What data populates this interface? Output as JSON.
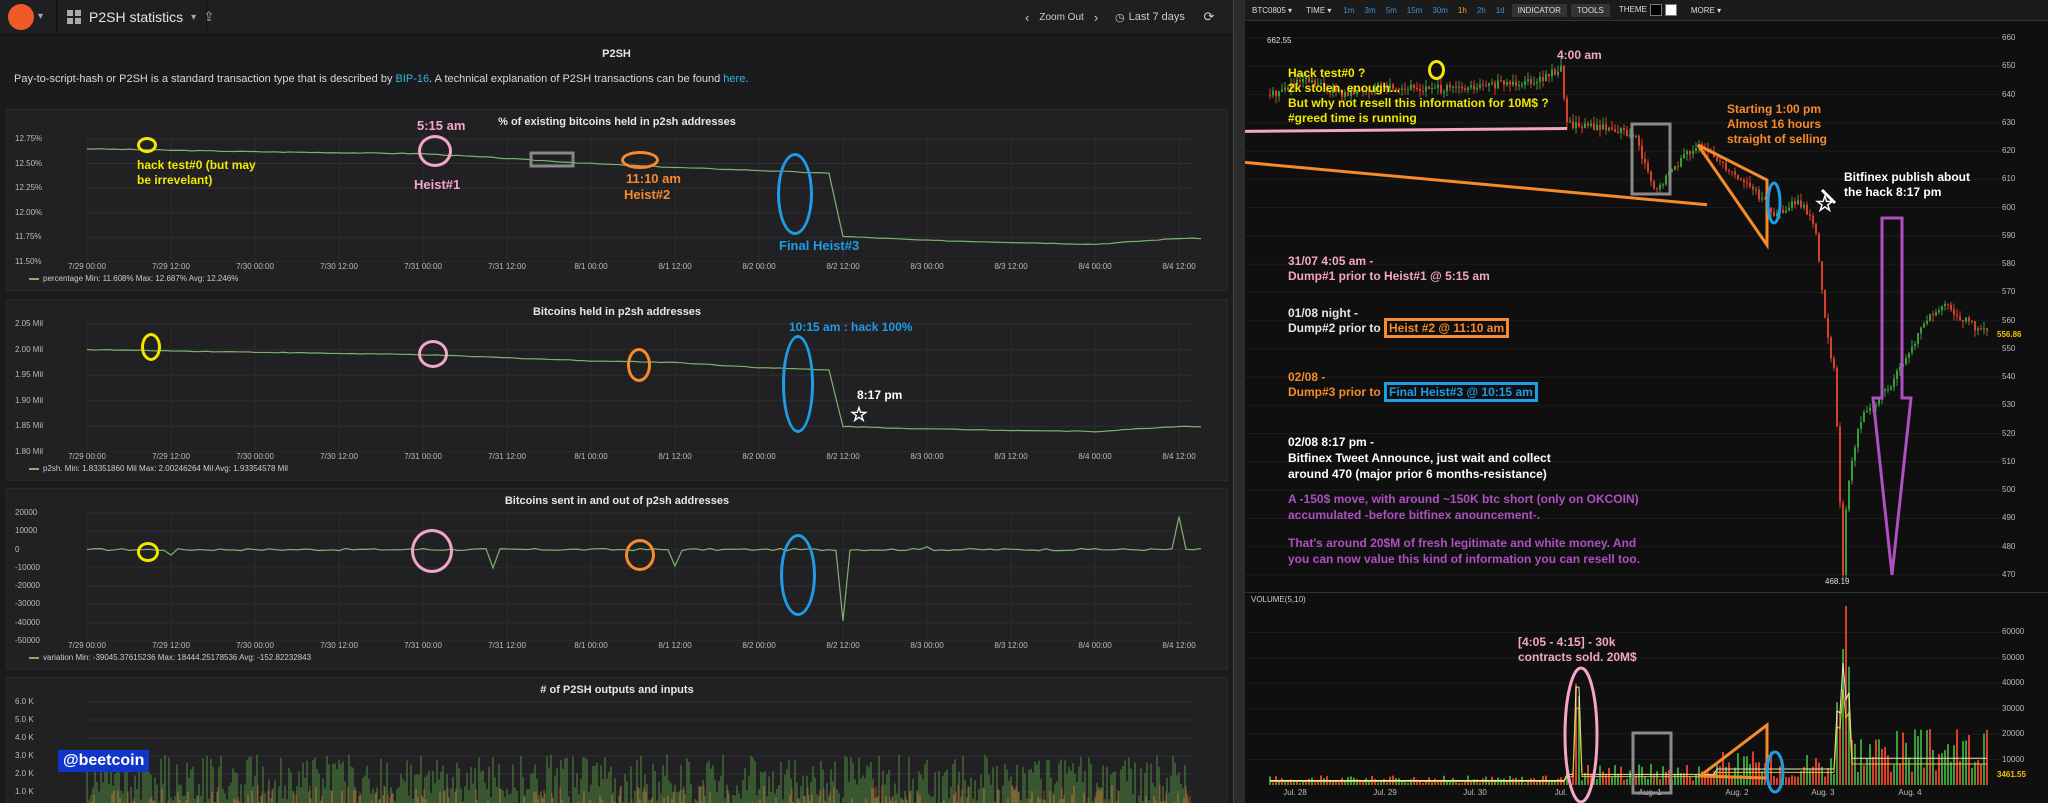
{
  "topbar": {
    "dashboard_title": "P2SH statistics",
    "dashboard_caret": "▾",
    "zoom_out": "Zoom Out",
    "time_range": "Last 7 days"
  },
  "text_panel": {
    "title": "P2SH",
    "desc_part1": "Pay-to-script-hash or P2SH is a standard transaction type that is described by ",
    "link_bip": "BIP-16",
    "desc_part2": ". A technical explanation of P2SH transactions can be found ",
    "link_here": "here",
    "desc_part3": "."
  },
  "x_ticks": [
    "7/29 00:00",
    "7/29 12:00",
    "7/30 00:00",
    "7/30 12:00",
    "7/31 00:00",
    "7/31 12:00",
    "8/1 00:00",
    "8/1 12:00",
    "8/2 00:00",
    "8/2 12:00",
    "8/3 00:00",
    "8/3 12:00",
    "8/4 00:00",
    "8/4 12:00"
  ],
  "panels": [
    {
      "title": "% of existing bitcoins held in p2sh addresses",
      "y_ticks": [
        "12.75%",
        "12.50%",
        "12.25%",
        "12.00%",
        "11.75%",
        "11.50%"
      ],
      "legend": "percentage  Min: 11.608%  Max: 12.687%  Avg: 12.246%"
    },
    {
      "title": "Bitcoins held in p2sh addresses",
      "y_ticks": [
        "2.05 Mil",
        "2.00 Mil",
        "1.95 Mil",
        "1.90 Mil",
        "1.85 Mil",
        "1.80 Mil"
      ],
      "legend": "p2sh.  Min: 1.83351860 Mil  Max: 2.00246264 Mil  Avg: 1.93354578 Mil"
    },
    {
      "title": "Bitcoins sent in and out of p2sh addresses",
      "y_ticks": [
        "20000",
        "10000",
        "0",
        "-10000",
        "-20000",
        "-30000",
        "-40000",
        "-50000"
      ],
      "legend": "variation  Min: -39045.37615236  Max: 18444.25178536  Avg: -152.82232843"
    },
    {
      "title": "# of P2SH outputs and inputs",
      "y_ticks": [
        "6.0 K",
        "5.0 K",
        "4.0 K",
        "3.0 K",
        "2.0 K",
        "1.0 K"
      ]
    }
  ],
  "chart_data": [
    {
      "type": "line",
      "title": "% of existing bitcoins held in p2sh addresses",
      "ylabel": "",
      "ylim": [
        11.5,
        12.8
      ],
      "series": [
        {
          "name": "percentage",
          "x": [
            "7/29 00:00",
            "7/30 00:00",
            "7/31 00:00",
            "7/31 10:00",
            "8/1 00:00",
            "8/1 12:00",
            "8/2 00:00",
            "8/2 10:00",
            "8/2 12:00",
            "8/3 00:00",
            "8/4 00:00",
            "8/4 12:00",
            "8/4 18:00"
          ],
          "values": [
            12.65,
            12.62,
            12.6,
            12.56,
            12.5,
            12.46,
            12.43,
            12.4,
            11.76,
            11.72,
            11.68,
            11.74,
            11.74
          ]
        }
      ]
    },
    {
      "type": "line",
      "title": "Bitcoins held in p2sh addresses",
      "ylabel": "",
      "ylim": [
        1.8,
        2.05
      ],
      "series": [
        {
          "name": "p2sh.",
          "x": [
            "7/29 00:00",
            "7/30 00:00",
            "7/31 00:00",
            "7/31 10:00",
            "8/1 00:00",
            "8/1 12:00",
            "8/2 00:00",
            "8/2 10:00",
            "8/2 12:00",
            "8/3 00:00",
            "8/4 00:00",
            "8/4 12:00",
            "8/4 18:00"
          ],
          "values": [
            2.0,
            1.995,
            1.99,
            1.985,
            1.978,
            1.975,
            1.965,
            1.96,
            1.85,
            1.845,
            1.84,
            1.85,
            1.85
          ]
        }
      ]
    },
    {
      "type": "line",
      "title": "Bitcoins sent in and out of p2sh addresses",
      "ylabel": "",
      "ylim": [
        -50000,
        20000
      ],
      "series": [
        {
          "name": "variation",
          "x": [
            "7/29 00:00",
            "7/29 12:00",
            "7/30 00:00",
            "7/31 00:00",
            "7/31 10:00",
            "8/1 00:00",
            "8/1 12:00",
            "8/2 00:00",
            "8/2 12:00",
            "8/3 00:00",
            "8/4 00:00",
            "8/4 12:00",
            "8/4 18:00"
          ],
          "values": [
            0,
            -3000,
            0,
            500,
            -10000,
            300,
            -9000,
            0,
            -39000,
            1500,
            500,
            18000,
            0
          ]
        }
      ]
    },
    {
      "type": "bar",
      "title": "# of P2SH outputs and inputs",
      "ylim": [
        0,
        6000
      ]
    },
    {
      "type": "candlestick",
      "title": "BTC0805",
      "y_ticks": [
        "660",
        "650",
        "640",
        "630",
        "620",
        "610",
        "600",
        "590",
        "580",
        "570",
        "560",
        "550",
        "540",
        "530",
        "520",
        "510",
        "500",
        "490",
        "480",
        "470"
      ],
      "x_ticks": [
        "Jul. 28",
        "Jul. 29",
        "Jul. 30",
        "Jul.",
        "Aug. 1",
        "Aug. 2",
        "Aug. 3",
        "Aug. 4"
      ],
      "ylim": [
        465,
        665
      ],
      "price_markers": {
        "high": "662.55",
        "low": "468.19",
        "last": "556.86"
      }
    },
    {
      "type": "bar",
      "title": "VOLUME(5,10)",
      "y_ticks": [
        "60000",
        "50000",
        "40000",
        "30000",
        "20000",
        "10000"
      ],
      "last": "3461.55",
      "ylim": [
        0,
        70000
      ]
    }
  ],
  "right_toolbar": {
    "symbol": "BTC0805",
    "time": "TIME",
    "timeframes": [
      "1m",
      "3m",
      "5m",
      "15m",
      "30m",
      "1h",
      "2h",
      "1d"
    ],
    "active_timeframe": "1h",
    "indicator": "INDICATOR",
    "tools": "TOOLS",
    "theme": "THEME",
    "more": "MORE",
    "caret": "▾"
  },
  "annotations_left": {
    "hack0": "hack test#0 (but may",
    "hack0_b": "be irrevelant)",
    "time515": "5:15 am",
    "heist1": "Heist#1",
    "time1110": "11:10 am",
    "heist2": "Heist#2",
    "final3": "Final Heist#3",
    "hack100": "10:15 am : hack 100%",
    "time817": "8:17 pm",
    "watermark": "@beetcoin"
  },
  "annotations_right": {
    "hack0_l1": "Hack test#0 ?",
    "hack0_l2": "2k stolen, enough...",
    "hack0_l3": "But why not resell this information for 10M$ ?",
    "hack0_l4": "#greed  time is running",
    "time400": "4:00 am",
    "sell_l1": "Starting 1:00 pm",
    "sell_l2": "Almost 16 hours",
    "sell_l3": "straight of selling",
    "bfx_l1": "Bitfinex publish about",
    "bfx_l2": "the hack 8:17 pm",
    "d1_l1": "31/07 4:05 am -",
    "d1_l2": "Dump#1 prior to Heist#1 @ 5:15 am",
    "d2_l1": "01/08 night -",
    "d2_l2": "Dump#2 prior to ",
    "d2_box": "Heist #2 @ 11:10 am",
    "d3_l1": "02/08 -",
    "d3_l2": "Dump#3 prior to ",
    "d3_box": "Final Heist#3 @ 10:15 am",
    "t_l1": "02/08 8:17 pm -",
    "t_l2": "Bitfinex Tweet Announce, just wait and collect",
    "t_l3": "around 470 (major prior 6 months-resistance)",
    "m_l1": "A -150$ move, with around ~150K btc short (only on OKCOIN)",
    "m_l2": "accumulated -before bitfinex anouncement-.",
    "m_l3": "That's around 20$M of fresh legitimate and white money. And",
    "m_l4": "you can now value this kind of information you can resell too.",
    "vol_l1": "[4:05 - 4:15] - 30k",
    "vol_l2": "contracts sold. 20M$"
  },
  "colors": {
    "green": "#7eb26d",
    "yellow": "#f2e700",
    "pink": "#f4a6c6",
    "orange": "#f58b2a",
    "blue": "#1e9ce6",
    "purple": "#b04fc2",
    "candle_up": "#3a9b3a",
    "candle_down": "#d8402a"
  }
}
